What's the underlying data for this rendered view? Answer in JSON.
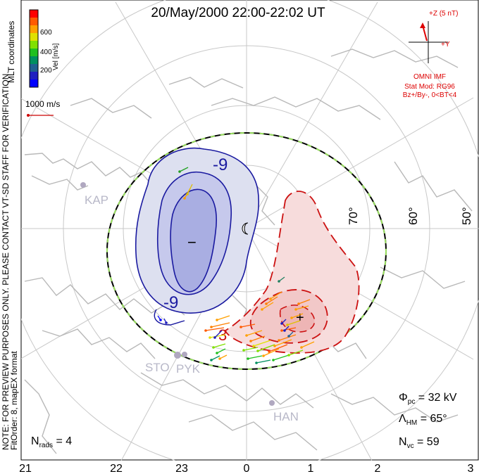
{
  "title": "20/May/2000 22:00-22:02 UT",
  "side_text": {
    "coords": "MLT coordinates",
    "note1": "NOTE: FOR PREVIEW PURPOSES ONLY. PLEASE CONTACT VT-SD STAFF FOR VERIFICATION.",
    "note2": "FitOrder: 8, mapEX format"
  },
  "colorbar": {
    "label": "Vel [m/s]",
    "ticks": [
      "600",
      "400",
      "200"
    ],
    "colors": [
      "#ff0000",
      "#ff5a00",
      "#ffa000",
      "#e0e000",
      "#80e000",
      "#20c020",
      "#009060",
      "#206090",
      "#2020c0",
      "#0000ff"
    ]
  },
  "vector_scale": {
    "label": "1000 m/s",
    "color": "#cc0000"
  },
  "imf": {
    "z_label": "+Z (5 nT)",
    "y_label": "+Y",
    "source": "OMNI IMF",
    "model": "Stat Mod: RG96",
    "condition": "Bz+/By-, 0<BT<4",
    "color": "#dd0000"
  },
  "lat_labels": [
    "70°",
    "60°",
    "50°"
  ],
  "contours": {
    "neg_label1": "-9",
    "neg_label2": "-9",
    "pos_label": "3",
    "min_marker": "−",
    "max_marker": "+",
    "neg_color": "#1a1aa0",
    "pos_color": "#cc1111"
  },
  "radars": [
    "KAP",
    "STO",
    "PYK",
    "HAN"
  ],
  "stats": {
    "phi_pc_sym": "Φ",
    "phi_pc_sub": "pc",
    "phi_pc_val": " = 32 kV",
    "lambda_sym": "Λ",
    "lambda_sub": "HM",
    "lambda_val": " = 65°",
    "nvc_sym": "N",
    "nvc_sub": "vc",
    "nvc_val": " = 59",
    "nrads_sym": "N",
    "nrads_sub": "rads",
    "nrads_val": " = 4"
  },
  "mlt_labels": [
    "21",
    "22",
    "23",
    "0",
    "1",
    "2",
    "3"
  ]
}
